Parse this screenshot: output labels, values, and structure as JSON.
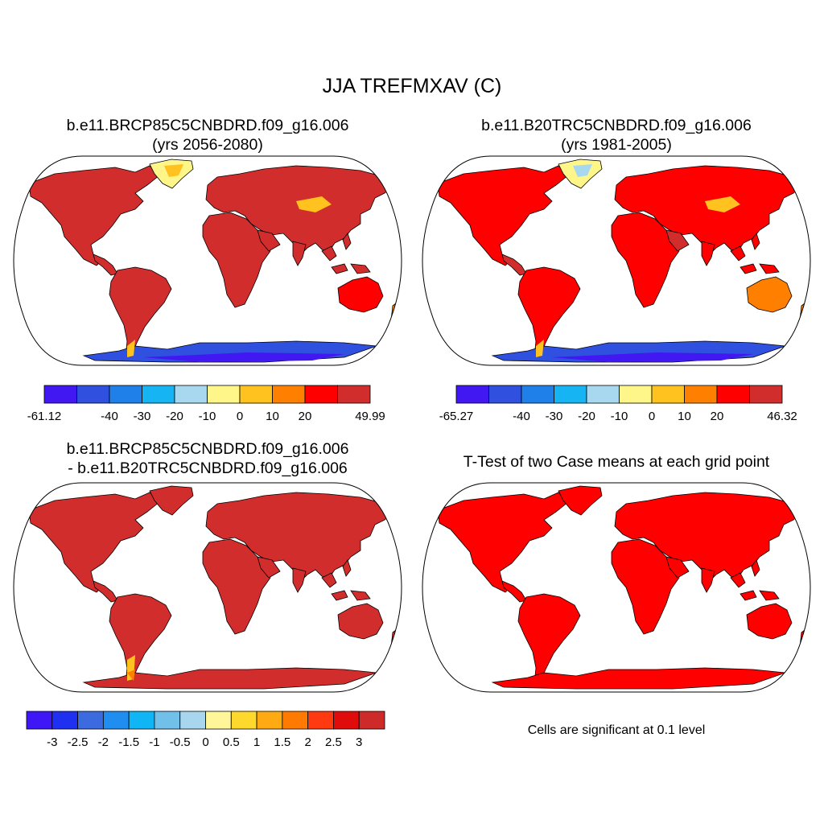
{
  "title": "JJA TREFMXAV (C)",
  "panels": [
    {
      "id": "p1",
      "title_lines": [
        "b.e11.BRCP85C5CNBDRD.f09_g16.006",
        "(yrs 2056-2080)"
      ]
    },
    {
      "id": "p2",
      "title_lines": [
        "b.e11.B20TRC5CNBDRD.f09_g16.006",
        "(yrs 1981-2005)"
      ]
    },
    {
      "id": "p3",
      "title_lines": [
        "b.e11.BRCP85C5CNBDRD.f09_g16.006",
        "- b.e11.B20TRC5CNBDRD.f09_g16.006"
      ]
    },
    {
      "id": "p4",
      "title_lines": [
        "T-Test of two Case means at each grid point"
      ]
    }
  ],
  "colorbars": [
    {
      "id": "cb1",
      "colors": [
        "#4117f2",
        "#3050e0",
        "#2080ea",
        "#16b4f2",
        "#a8d8f0",
        "#fff68a",
        "#ffc21e",
        "#ff8000",
        "#ff0000",
        "#d22d2d"
      ],
      "labels": [
        "-61.12",
        "-40",
        "-30",
        "-20",
        "-10",
        "0",
        "10",
        "20",
        "49.99"
      ],
      "label_boxes": [
        0,
        2,
        3,
        4,
        5,
        6,
        7,
        8,
        10
      ]
    },
    {
      "id": "cb2",
      "colors": [
        "#4117f2",
        "#3050e0",
        "#2080ea",
        "#16b4f2",
        "#a8d8f0",
        "#fff68a",
        "#ffc21e",
        "#ff8000",
        "#ff0000",
        "#d22d2d"
      ],
      "labels": [
        "-65.27",
        "-40",
        "-30",
        "-20",
        "-10",
        "0",
        "10",
        "20",
        "46.32"
      ],
      "label_boxes": [
        0,
        2,
        3,
        4,
        5,
        6,
        7,
        8,
        10
      ]
    },
    {
      "id": "cb3",
      "colors": [
        "#3f17f7",
        "#1f30f0",
        "#3c6be0",
        "#1f8ef0",
        "#10b5f5",
        "#70c0ea",
        "#a8d6ee",
        "#fff69a",
        "#ffd82e",
        "#ffaa12",
        "#ff7a00",
        "#ff3a10",
        "#e00c0c",
        "#cf2a2a"
      ],
      "labels": [
        "-3",
        "-2.5",
        "-2",
        "-1.5",
        "-1",
        "-0.5",
        "0",
        "0.5",
        "1",
        "1.5",
        "2",
        "2.5",
        "3"
      ],
      "label_boxes": [
        1,
        2,
        3,
        4,
        5,
        6,
        7,
        8,
        9,
        10,
        11,
        12,
        13
      ]
    }
  ],
  "significance_note": "Cells are significant at 0.1 level",
  "palette": {
    "land_dark_red": "#d22d2d",
    "land_red": "#ff0000",
    "land_orange": "#ff8000",
    "land_light_orange": "#ffc21e",
    "land_yellow": "#fff68a",
    "antarctic_blue": "#3050e0",
    "antarctic_violet": "#4117f2",
    "coast_line": "#000000"
  }
}
